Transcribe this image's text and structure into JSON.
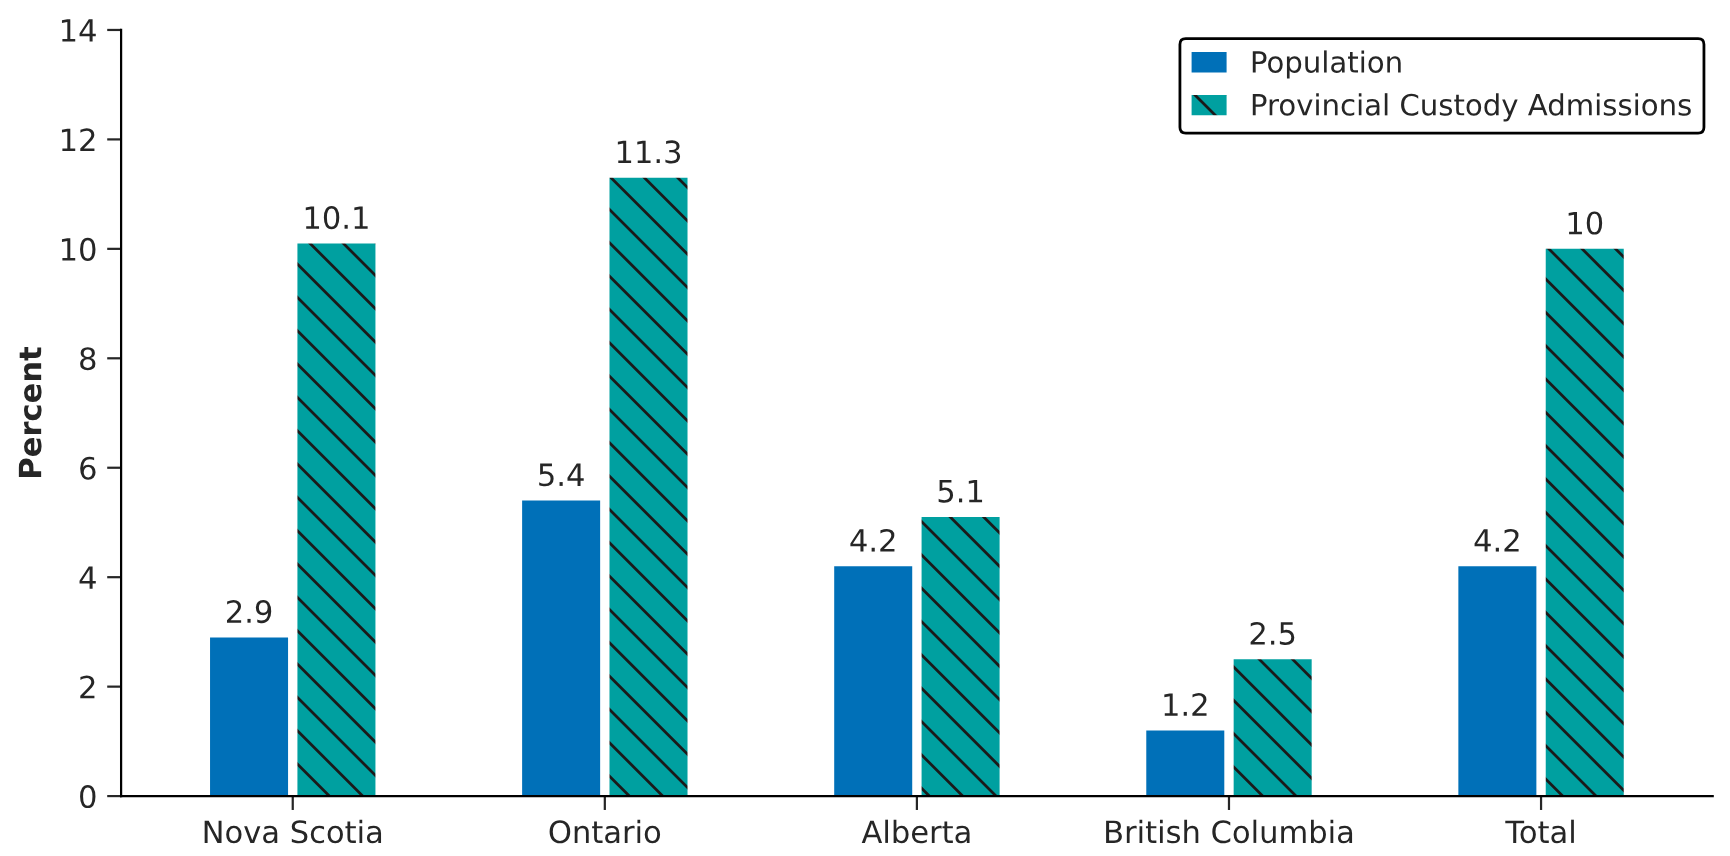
{
  "chart_data": {
    "type": "bar",
    "ylabel": "Percent",
    "categories": [
      "Nova Scotia",
      "Ontario",
      "Alberta",
      "British Columbia",
      "Total"
    ],
    "series": [
      {
        "name": "Population",
        "color": "#0070b8",
        "values": [
          2.9,
          5.4,
          4.2,
          1.2,
          4.2
        ]
      },
      {
        "name": "Provincial Custody Admissions",
        "color": "#00a0a0",
        "values": [
          10.1,
          11.3,
          5.1,
          2.5,
          10
        ]
      }
    ],
    "ylim": [
      0,
      14
    ],
    "yticks": [
      0,
      2,
      4,
      6,
      8,
      10,
      12,
      14
    ],
    "data_labels": true,
    "legend": "top right",
    "grid": false
  }
}
